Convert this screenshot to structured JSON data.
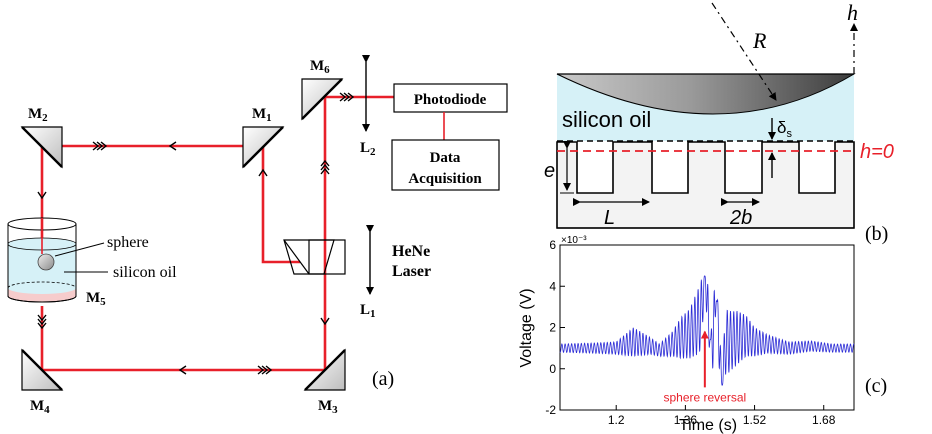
{
  "panel_a": {
    "label": "(a)",
    "mirrors": {
      "m1": "M",
      "m1_sub": "1",
      "m2": "M",
      "m2_sub": "2",
      "m3": "M",
      "m3_sub": "3",
      "m4": "M",
      "m4_sub": "4",
      "m5": "M",
      "m5_sub": "5",
      "m6": "M",
      "m6_sub": "6"
    },
    "lenses": {
      "l1": "L",
      "l1_sub": "1",
      "l2": "L",
      "l2_sub": "2"
    },
    "photodiode": "Photodiode",
    "daq_line1": "Data",
    "daq_line2": "Acquisition",
    "laser_line1": "HeNe",
    "laser_line2": "Laser",
    "sphere": "sphere",
    "oil": "silicon oil",
    "colors": {
      "beam": "#e8202a",
      "oil_fill": "#d6f1f7",
      "base_fill": "#f6cccc"
    }
  },
  "panel_b": {
    "label": "(b)",
    "R": "R",
    "h": "h",
    "h0": "h=0",
    "oil": "silicon oil",
    "delta": "δ",
    "delta_sub": "s",
    "e": "e",
    "L": "L",
    "two_b": "2b",
    "colors": {
      "oil": "#d6f1f7",
      "substrate": "#f3f3f3",
      "h0_line": "#e8202a"
    }
  },
  "panel_c": {
    "label": "(c)",
    "annotation": "sphere reversal",
    "colors": {
      "trace": "#2d2dd6",
      "annotation": "#e8202a"
    }
  },
  "chart_data": {
    "type": "line",
    "xlabel": "Time (s)",
    "ylabel": "Voltage (V)",
    "y_exponent": "×10⁻³",
    "xlim": [
      1.07,
      1.75
    ],
    "ylim": [
      -2,
      6
    ],
    "xticks": [
      1.2,
      1.36,
      1.52,
      1.68
    ],
    "xtick_labels": [
      "1.2",
      "1.36",
      "1.52",
      "1.68"
    ],
    "yticks": [
      -2,
      0,
      2,
      4,
      6
    ],
    "ytick_labels": [
      "-2",
      "0",
      "2",
      "4",
      "6"
    ],
    "grid": false,
    "series": [
      {
        "values_envelope": {
          "x": [
            1.07,
            1.15,
            1.2,
            1.24,
            1.28,
            1.3,
            1.33,
            1.35,
            1.37,
            1.39,
            1.4,
            1.41,
            1.42,
            1.43,
            1.44,
            1.46,
            1.48,
            1.5,
            1.52,
            1.55,
            1.6,
            1.65,
            1.7,
            1.75
          ],
          "mean": [
            1.0,
            1.0,
            1.0,
            1.3,
            1.1,
            0.9,
            1.2,
            1.5,
            1.7,
            2.3,
            2.8,
            2.7,
            2.0,
            1.6,
            1.4,
            1.3,
            1.5,
            1.6,
            1.3,
            1.2,
            1.0,
            1.1,
            1.0,
            1.0
          ],
          "amp": [
            0.2,
            0.25,
            0.3,
            0.7,
            0.4,
            0.3,
            0.6,
            1.0,
            1.2,
            1.6,
            1.7,
            1.9,
            2.6,
            2.2,
            1.8,
            1.5,
            1.3,
            1.0,
            0.7,
            0.45,
            0.3,
            0.25,
            0.2,
            0.2
          ]
        },
        "key_points": [
          {
            "x": 1.405,
            "y": 4.5
          },
          {
            "x": 1.418,
            "y": 1.4
          },
          {
            "x": 1.432,
            "y": 3.3
          },
          {
            "x": 1.445,
            "y": -0.8
          }
        ]
      }
    ],
    "annotations": [
      {
        "text": "sphere reversal",
        "x": 1.405,
        "y": -1.0
      }
    ]
  }
}
